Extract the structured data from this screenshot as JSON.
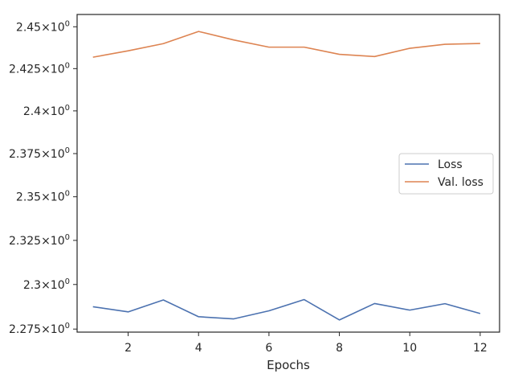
{
  "chart_data": {
    "type": "line",
    "title": "",
    "xlabel": "Epochs",
    "ylabel": "",
    "x": [
      1,
      2,
      3,
      4,
      5,
      6,
      7,
      8,
      9,
      10,
      11,
      12
    ],
    "xlim": [
      0.55,
      12.55
    ],
    "ylim": [
      2.2733,
      2.4574
    ],
    "yscale": "log",
    "grid": false,
    "legend_position": "center-right",
    "x_ticks": [
      {
        "value": 2,
        "label": "2"
      },
      {
        "value": 4,
        "label": "4"
      },
      {
        "value": 6,
        "label": "6"
      },
      {
        "value": 8,
        "label": "8"
      },
      {
        "value": 10,
        "label": "10"
      },
      {
        "value": 12,
        "label": "12"
      }
    ],
    "y_ticks": [
      {
        "value": 2.275,
        "mant": "2.275",
        "exp": "0"
      },
      {
        "value": 2.3,
        "mant": "2.3",
        "exp": "0"
      },
      {
        "value": 2.325,
        "mant": "2.325",
        "exp": "0"
      },
      {
        "value": 2.35,
        "mant": "2.35",
        "exp": "0"
      },
      {
        "value": 2.375,
        "mant": "2.375",
        "exp": "0"
      },
      {
        "value": 2.4,
        "mant": "2.4",
        "exp": "0"
      },
      {
        "value": 2.425,
        "mant": "2.425",
        "exp": "0"
      },
      {
        "value": 2.45,
        "mant": "2.45",
        "exp": "0"
      }
    ],
    "series": [
      {
        "name": "Loss",
        "color": "#4c72b0",
        "values": [
          2.2875,
          2.2846,
          2.2913,
          2.2819,
          2.2807,
          2.2852,
          2.2915,
          2.2801,
          2.2893,
          2.2856,
          2.2892,
          2.2837
        ]
      },
      {
        "name": "Val. loss",
        "color": "#dd8452",
        "values": [
          2.4318,
          2.4356,
          2.4399,
          2.4472,
          2.4421,
          2.4378,
          2.4378,
          2.4335,
          2.4322,
          2.4371,
          2.4395,
          2.44
        ]
      }
    ]
  }
}
